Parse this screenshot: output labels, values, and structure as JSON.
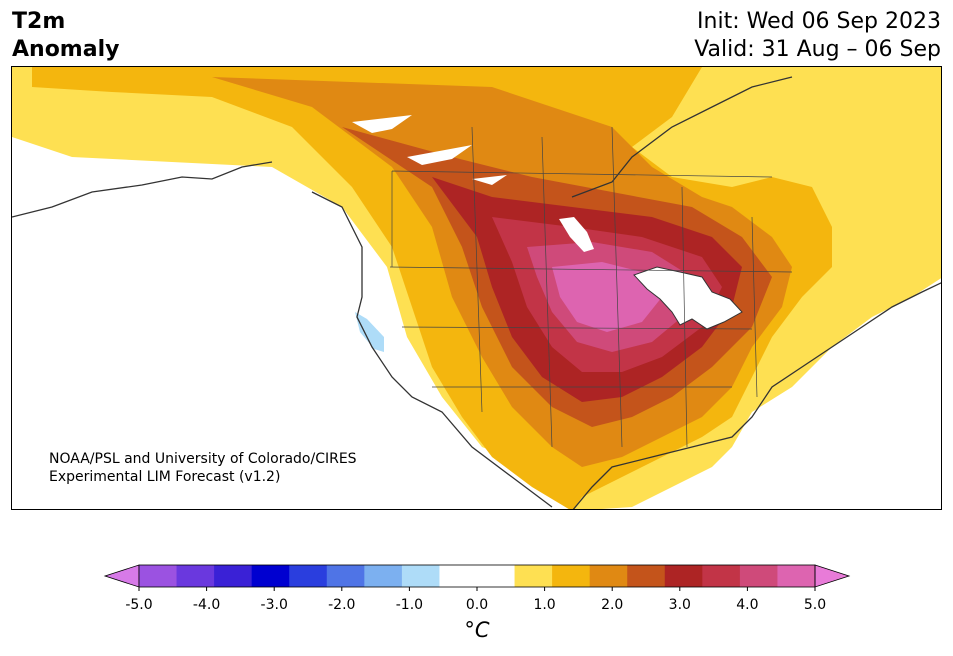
{
  "title": {
    "variable": "T2m",
    "type": "Anomaly",
    "init": "Init: Wed 06 Sep 2023",
    "valid": "Valid: 31 Aug – 06 Sep"
  },
  "credit": {
    "line1": "NOAA/PSL and University of Colorado/CIRES",
    "line2": "Experimental LIM Forecast (v1.2)"
  },
  "colorbar": {
    "unit_label": "°C",
    "colors": [
      "#d77ae8",
      "#9b52e1",
      "#6a38de",
      "#3a21d6",
      "#0000d0",
      "#2a3ede",
      "#4f74e6",
      "#7cb0f0",
      "#aedcf8",
      "#ffffff",
      "#ffffff",
      "#fee052",
      "#f4b60e",
      "#e08913",
      "#c4541b",
      "#ad2424",
      "#c23447",
      "#cf4a7a",
      "#dd64b0",
      "#e87bd8"
    ],
    "ticks": [
      "-5.0",
      "-4.0",
      "-3.0",
      "-2.0",
      "-1.0",
      "0.0",
      "1.0",
      "2.0",
      "3.0",
      "4.0",
      "5.0"
    ]
  }
}
